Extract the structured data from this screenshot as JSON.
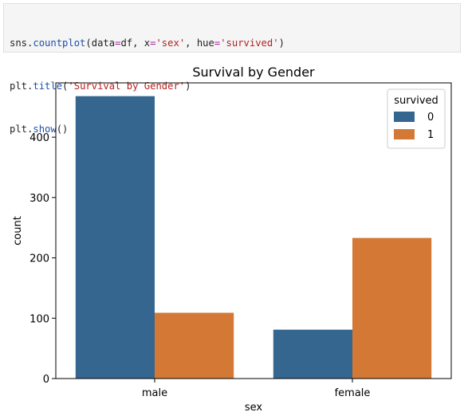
{
  "code": {
    "lines": [
      [
        {
          "t": "sns",
          "c": "name"
        },
        {
          "t": ".",
          "c": "punc"
        },
        {
          "t": "countplot",
          "c": "func"
        },
        {
          "t": "(data",
          "c": "punc"
        },
        {
          "t": "=",
          "c": "kw"
        },
        {
          "t": "df, x",
          "c": "punc"
        },
        {
          "t": "=",
          "c": "kw"
        },
        {
          "t": "'sex'",
          "c": "str"
        },
        {
          "t": ", hue",
          "c": "punc"
        },
        {
          "t": "=",
          "c": "kw"
        },
        {
          "t": "'survived'",
          "c": "str"
        },
        {
          "t": ")",
          "c": "punc"
        }
      ],
      [
        {
          "t": "plt",
          "c": "name"
        },
        {
          "t": ".",
          "c": "punc"
        },
        {
          "t": "title",
          "c": "func"
        },
        {
          "t": "(",
          "c": "punc"
        },
        {
          "t": "'Survival by Gender'",
          "c": "str"
        },
        {
          "t": ")",
          "c": "punc"
        }
      ],
      [
        {
          "t": "plt",
          "c": "name"
        },
        {
          "t": ".",
          "c": "punc"
        },
        {
          "t": "show",
          "c": "func"
        },
        {
          "t": "()",
          "c": "punc"
        }
      ]
    ]
  },
  "chart_data": {
    "type": "bar",
    "title": "Survival by Gender",
    "xlabel": "sex",
    "ylabel": "count",
    "categories": [
      "male",
      "female"
    ],
    "series": [
      {
        "name": "0",
        "values": [
          468,
          81
        ],
        "color": "#35668f"
      },
      {
        "name": "1",
        "values": [
          109,
          233
        ],
        "color": "#d37935"
      }
    ],
    "ylim": [
      0,
      490
    ],
    "yticks": [
      0,
      100,
      200,
      300,
      400
    ],
    "grid": false,
    "legend": {
      "title": "survived",
      "placement": "top-right"
    }
  }
}
